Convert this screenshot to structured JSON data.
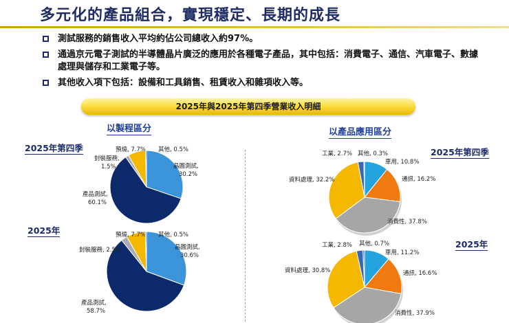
{
  "title": "多元化的產品組合，實現穩定、長期的成長",
  "bullets": [
    "測試服務的銷售收入平均約佔公司總收入約97%。",
    "通過京元電子測試的半導體晶片廣泛的應用於各種電子產品，其中包括：消費電子、通信、汽車電子、數據處理與儲存和工業電子等。",
    "其他收入項下包括：設備和工具銷售、租賃收入和雜項收入等。"
  ],
  "banner": "2025年與2025年第四季營業收入明細",
  "left_section_title": "以製程區分",
  "right_section_title": "以產品應用區分",
  "period_labels": {
    "left_top": "2025年第四季",
    "left_bottom": "2025年",
    "right_top": "2025年第四季",
    "right_bottom": "2025年"
  },
  "colors": {
    "title": "#1f2c64",
    "wafer_test": "#3b93d9",
    "product_test": "#0c2a6b",
    "packaging": "#a8abb2",
    "burn_in": "#f5b800",
    "other": "#3a6cc6",
    "industrial": "#3a67b3",
    "automotive": "#24a4df",
    "communication": "#f07a10",
    "consumer": "#a6a6a6",
    "data_processing": "#f5b800"
  },
  "chart_data": [
    {
      "type": "pie",
      "title": "",
      "group": "以製程區分",
      "period": "2025年第四季",
      "slices": [
        {
          "name": "晶圓測試",
          "value": 30.2,
          "label": "晶圓測試,",
          "pct": "30.2%"
        },
        {
          "name": "產品測試",
          "value": 60.1,
          "label": "產品測試,",
          "pct": "60.1%"
        },
        {
          "name": "封裝服務",
          "value": 1.5,
          "label": "封裝服務,",
          "pct": "1.5%"
        },
        {
          "name": "預燒",
          "value": 7.7,
          "label": "預燒, 7.7%",
          "pct": ""
        },
        {
          "name": "其他",
          "value": 0.5,
          "label": "其他, 0.5%",
          "pct": ""
        }
      ]
    },
    {
      "type": "pie",
      "title": "",
      "group": "以製程區分",
      "period": "2025年",
      "slices": [
        {
          "name": "晶圓測試",
          "value": 30.6,
          "label": "晶圓測試,",
          "pct": "30.6%"
        },
        {
          "name": "產品測試",
          "value": 58.7,
          "label": "產品測試,",
          "pct": "58.7%"
        },
        {
          "name": "封裝服務",
          "value": 2.5,
          "label": "封裝服務, 2.5%",
          "pct": ""
        },
        {
          "name": "預燒",
          "value": 7.7,
          "label": "預燒, 7.7%",
          "pct": ""
        },
        {
          "name": "其他",
          "value": 0.5,
          "label": "其他, 0.5%",
          "pct": ""
        }
      ]
    },
    {
      "type": "pie",
      "title": "",
      "group": "以產品應用區分",
      "period": "2025年第四季",
      "slices": [
        {
          "name": "車用",
          "value": 10.8,
          "label": "車用, 10.8%",
          "pct": ""
        },
        {
          "name": "通訊",
          "value": 16.2,
          "label": "通訊, 16.2%",
          "pct": ""
        },
        {
          "name": "消費性",
          "value": 37.8,
          "label": "消費性, 37.8%",
          "pct": ""
        },
        {
          "name": "資料處理",
          "value": 32.2,
          "label": "資料處理, 32.2%",
          "pct": ""
        },
        {
          "name": "工業",
          "value": 2.7,
          "label": "工業, 2.7%",
          "pct": ""
        },
        {
          "name": "其他",
          "value": 0.3,
          "label": "其他, 0.3%",
          "pct": ""
        }
      ]
    },
    {
      "type": "pie",
      "title": "",
      "group": "以產品應用區分",
      "period": "2025年",
      "slices": [
        {
          "name": "車用",
          "value": 11.2,
          "label": "車用, 11.2%",
          "pct": ""
        },
        {
          "name": "通訊",
          "value": 16.6,
          "label": "通訊, 16.6%",
          "pct": ""
        },
        {
          "name": "消費性",
          "value": 37.9,
          "label": "消費性, 37.9%",
          "pct": ""
        },
        {
          "name": "資料處理",
          "value": 30.8,
          "label": "資料處理, 30.8%",
          "pct": ""
        },
        {
          "name": "工業",
          "value": 2.8,
          "label": "工業, 2.8%",
          "pct": ""
        },
        {
          "name": "其他",
          "value": 0.7,
          "label": "其他, 0.7%",
          "pct": ""
        }
      ]
    }
  ]
}
